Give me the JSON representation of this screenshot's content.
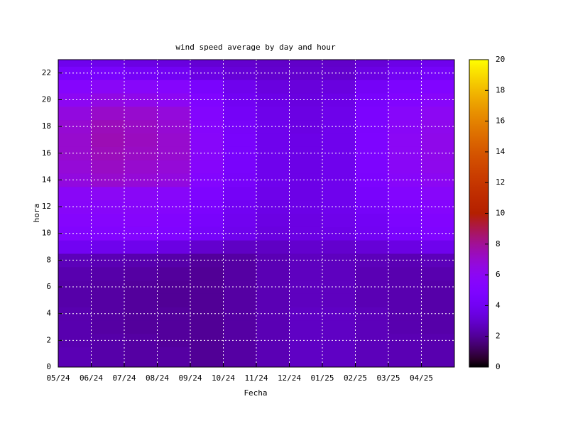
{
  "chart_data": {
    "type": "heatmap",
    "title": "wind speed average by day and hour",
    "xlabel": "Fecha",
    "ylabel": "hora",
    "x": [
      "05/24",
      "06/24",
      "07/24",
      "08/24",
      "09/24",
      "10/24",
      "11/24",
      "12/24",
      "01/25",
      "02/25",
      "03/25",
      "04/25"
    ],
    "y": [
      0,
      1,
      2,
      3,
      4,
      5,
      6,
      7,
      8,
      9,
      10,
      11,
      12,
      13,
      14,
      15,
      16,
      17,
      18,
      19,
      20,
      21,
      22,
      23
    ],
    "ylim": [
      0,
      23
    ],
    "yticks": [
      0,
      2,
      4,
      6,
      8,
      10,
      12,
      14,
      16,
      18,
      20,
      22
    ],
    "zlim": [
      0,
      20
    ],
    "zticks": [
      0,
      2,
      4,
      6,
      8,
      10,
      12,
      14,
      16,
      18,
      20
    ],
    "grid": true,
    "values": [
      [
        2.5,
        2.3,
        2.2,
        2.2,
        2.0,
        2.2,
        2.5,
        2.8,
        2.8,
        2.6,
        2.5,
        2.4
      ],
      [
        2.5,
        2.3,
        2.2,
        2.2,
        2.0,
        2.2,
        2.5,
        2.8,
        2.8,
        2.6,
        2.5,
        2.4
      ],
      [
        2.4,
        2.3,
        2.2,
        2.1,
        2.0,
        2.2,
        2.5,
        2.8,
        2.8,
        2.6,
        2.5,
        2.4
      ],
      [
        2.4,
        2.2,
        2.1,
        2.1,
        2.0,
        2.2,
        2.5,
        2.8,
        2.8,
        2.6,
        2.4,
        2.3
      ],
      [
        2.4,
        2.2,
        2.1,
        2.1,
        2.0,
        2.2,
        2.5,
        2.8,
        2.8,
        2.6,
        2.4,
        2.3
      ],
      [
        2.3,
        2.2,
        2.1,
        2.0,
        2.0,
        2.2,
        2.5,
        2.7,
        2.7,
        2.5,
        2.4,
        2.3
      ],
      [
        2.3,
        2.2,
        2.1,
        2.0,
        2.0,
        2.2,
        2.5,
        2.7,
        2.7,
        2.5,
        2.4,
        2.3
      ],
      [
        2.4,
        2.3,
        2.2,
        2.1,
        2.0,
        2.2,
        2.5,
        2.7,
        2.7,
        2.5,
        2.4,
        2.4
      ],
      [
        2.6,
        2.5,
        2.4,
        2.3,
        2.1,
        2.2,
        2.5,
        2.7,
        2.7,
        2.6,
        2.5,
        2.6
      ],
      [
        4.0,
        3.8,
        3.8,
        3.5,
        3.0,
        2.8,
        2.8,
        3.0,
        3.0,
        3.2,
        3.5,
        3.8
      ],
      [
        5.2,
        5.2,
        5.3,
        5.0,
        4.3,
        3.8,
        3.4,
        3.5,
        3.6,
        4.0,
        4.6,
        5.0
      ],
      [
        5.4,
        5.4,
        5.5,
        5.2,
        4.5,
        3.9,
        3.5,
        3.5,
        3.7,
        4.1,
        4.8,
        5.2
      ],
      [
        5.6,
        5.6,
        5.6,
        5.4,
        4.7,
        4.0,
        3.6,
        3.6,
        3.8,
        4.3,
        5.0,
        5.4
      ],
      [
        5.8,
        5.9,
        5.8,
        5.6,
        4.9,
        4.2,
        3.7,
        3.6,
        3.8,
        4.5,
        5.3,
        5.6
      ],
      [
        6.6,
        7.0,
        6.8,
        6.6,
        5.3,
        4.4,
        3.8,
        3.6,
        3.8,
        4.7,
        5.6,
        6.0
      ],
      [
        6.8,
        7.2,
        7.0,
        6.8,
        5.5,
        4.5,
        3.8,
        3.6,
        3.8,
        4.8,
        5.8,
        6.2
      ],
      [
        7.0,
        7.4,
        7.2,
        7.0,
        5.6,
        4.5,
        3.8,
        3.6,
        3.8,
        4.9,
        5.9,
        6.3
      ],
      [
        7.0,
        7.5,
        7.3,
        7.0,
        5.6,
        4.5,
        3.8,
        3.6,
        3.8,
        4.9,
        5.9,
        6.3
      ],
      [
        6.9,
        7.4,
        7.2,
        6.9,
        5.5,
        4.4,
        3.8,
        3.5,
        3.8,
        4.8,
        5.8,
        6.2
      ],
      [
        6.6,
        7.1,
        7.0,
        6.7,
        5.3,
        4.2,
        3.7,
        3.5,
        3.7,
        4.7,
        5.6,
        6.0
      ],
      [
        6.0,
        6.5,
        6.3,
        6.0,
        5.0,
        4.0,
        3.6,
        3.4,
        3.6,
        4.5,
        5.2,
        5.6
      ],
      [
        5.4,
        5.8,
        5.6,
        5.4,
        4.6,
        3.8,
        3.4,
        3.3,
        3.4,
        4.2,
        4.8,
        5.1
      ],
      [
        4.5,
        4.5,
        4.2,
        4.0,
        3.5,
        3.2,
        3.0,
        3.0,
        3.0,
        3.5,
        4.0,
        4.3
      ],
      [
        3.8,
        3.7,
        3.5,
        3.4,
        3.1,
        3.0,
        2.9,
        2.9,
        2.9,
        3.2,
        3.6,
        3.8
      ]
    ]
  }
}
